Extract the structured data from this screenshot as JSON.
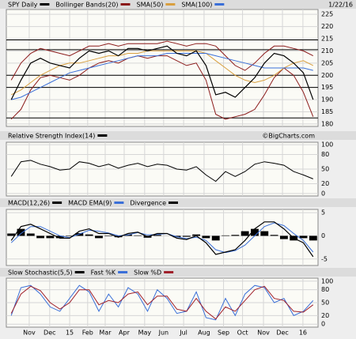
{
  "chart_data": [
    {
      "type": "line",
      "title": "SPY Daily",
      "date": "1/22/16",
      "color": "#000000",
      "values": [
        190,
        198,
        205,
        207,
        205,
        204,
        203,
        207,
        210,
        209,
        210,
        208,
        211,
        211,
        210,
        211,
        212,
        209,
        208,
        210,
        204,
        192,
        193,
        191,
        195,
        199,
        205,
        209,
        208,
        205,
        201,
        190
      ],
      "bands": {
        "name": "Bollinger Bands(20)",
        "color": "#8b1a1a",
        "upper": [
          198,
          205,
          209,
          211,
          210,
          209,
          208,
          210,
          212,
          212,
          213,
          212,
          213,
          213,
          213,
          213,
          214,
          213,
          212,
          213,
          213,
          212,
          208,
          204,
          202,
          205,
          209,
          212,
          212,
          211,
          210,
          208
        ],
        "lower": [
          182,
          186,
          194,
          199,
          200,
          199,
          198,
          200,
          203,
          205,
          206,
          205,
          207,
          208,
          207,
          208,
          208,
          206,
          204,
          205,
          198,
          184,
          182,
          183,
          184,
          186,
          192,
          199,
          203,
          200,
          193,
          183
        ]
      },
      "series": [
        {
          "name": "SMA(50)",
          "color": "#d9a040",
          "values": [
            192,
            194,
            197,
            200,
            202,
            204,
            205,
            205,
            206,
            207,
            208,
            208,
            209,
            209,
            210,
            210,
            210,
            210,
            210,
            210,
            209,
            206,
            203,
            200,
            198,
            197,
            198,
            200,
            203,
            205,
            206,
            204
          ]
        },
        {
          "name": "SMA(100)",
          "color": "#3a6fd8",
          "values": [
            190,
            191,
            193,
            195,
            197,
            199,
            201,
            202,
            203,
            204,
            205,
            206,
            207,
            208,
            208,
            208,
            209,
            209,
            209,
            209,
            209,
            208,
            207,
            206,
            205,
            204,
            203,
            203,
            203,
            203,
            203,
            202
          ]
        }
      ],
      "hlines": [
        214.5,
        210.5,
        200,
        195,
        182.5
      ],
      "ylim": [
        179,
        227
      ],
      "yticks": [
        180,
        185,
        190,
        195,
        200,
        205,
        210,
        215,
        220,
        225
      ]
    },
    {
      "type": "line",
      "title": "Relative Strength Index(14)",
      "watermark": "©BigCharts.com",
      "series": [
        {
          "name": "Relative Strength Index(14)",
          "color": "#000000",
          "values": [
            35,
            65,
            68,
            60,
            55,
            48,
            50,
            65,
            62,
            55,
            60,
            52,
            58,
            62,
            55,
            60,
            58,
            50,
            48,
            55,
            38,
            25,
            45,
            35,
            45,
            60,
            65,
            62,
            58,
            45,
            38,
            30
          ]
        }
      ],
      "ylim": [
        -5,
        105
      ],
      "yticks": [
        0,
        20,
        50,
        80,
        100
      ]
    },
    {
      "type": "line",
      "title": "MACD(12,26)",
      "color": "#000000",
      "series": [
        {
          "name": "MACD EMA(9)",
          "color": "#3a6fd8",
          "values": [
            -1.5,
            0.5,
            2,
            2,
            1,
            0,
            -0.4,
            0.4,
            1.2,
            1,
            0.6,
            0,
            0.2,
            0.7,
            0.2,
            0.3,
            0.5,
            -0.2,
            -0.6,
            -0.3,
            -1,
            -3,
            -3.6,
            -3.2,
            -2,
            0,
            2,
            2.8,
            2.2,
            0.5,
            -1,
            -3.5
          ]
        },
        {
          "name": "Divergence",
          "color": "#000000",
          "style": "bar",
          "values": [
            0.5,
            1.5,
            0.5,
            -0.5,
            -0.5,
            -0.5,
            -0.1,
            0.6,
            0.3,
            -0.5,
            -0.1,
            -0.3,
            0.3,
            0.1,
            -0.4,
            0.2,
            0,
            -0.3,
            -0.2,
            0.3,
            -0.5,
            -1,
            0.1,
            0.2,
            1,
            1.5,
            1,
            0.2,
            -0.7,
            -1,
            -0.5,
            -1
          ]
        }
      ],
      "values": [
        -1,
        2,
        2.5,
        1.5,
        0.5,
        -0.5,
        -0.5,
        1,
        1.5,
        0.5,
        0.5,
        -0.3,
        0.5,
        0.8,
        -0.2,
        0.5,
        0.5,
        -0.5,
        -0.8,
        0,
        -1.5,
        -4,
        -3.5,
        -3,
        -1,
        1.5,
        3,
        3,
        1.5,
        -0.5,
        -1.5,
        -4.5
      ],
      "ylim": [
        -6.4,
        5.7
      ],
      "yticks": [
        -5,
        0,
        5
      ]
    },
    {
      "type": "line",
      "title": "Slow Stochastic(5,5)",
      "series": [
        {
          "name": "Fast %K",
          "color": "#3a6fd8",
          "values": [
            20,
            85,
            90,
            70,
            40,
            30,
            60,
            90,
            75,
            30,
            70,
            40,
            85,
            70,
            30,
            80,
            60,
            25,
            30,
            75,
            15,
            10,
            60,
            20,
            70,
            90,
            85,
            50,
            60,
            20,
            30,
            55
          ]
        },
        {
          "name": "Slow %D",
          "color": "#a0202a",
          "values": [
            25,
            70,
            88,
            78,
            50,
            35,
            50,
            80,
            80,
            45,
            55,
            50,
            70,
            75,
            45,
            65,
            65,
            35,
            30,
            60,
            30,
            12,
            40,
            30,
            55,
            80,
            88,
            60,
            55,
            30,
            28,
            45
          ]
        }
      ],
      "ylim": [
        -7,
        107
      ],
      "yticks": [
        0,
        20,
        50,
        80,
        100
      ],
      "xlim": [
        0,
        32
      ],
      "xticks": [
        {
          "value": 2.35,
          "label": "Nov"
        },
        {
          "value": 4.45,
          "label": "Dec"
        },
        {
          "value": 6.5,
          "label": "15"
        },
        {
          "value": 8.35,
          "label": "Feb"
        },
        {
          "value": 10.15,
          "label": "Mar"
        },
        {
          "value": 12.1,
          "label": "Apr"
        },
        {
          "value": 14.2,
          "label": "May"
        },
        {
          "value": 16.15,
          "label": "Jun"
        },
        {
          "value": 18.2,
          "label": "Jul"
        },
        {
          "value": 20.3,
          "label": "Aug"
        },
        {
          "value": 22.3,
          "label": "Sep"
        },
        {
          "value": 24.25,
          "label": "Oct"
        },
        {
          "value": 26.4,
          "label": "Nov"
        },
        {
          "value": 28.35,
          "label": "Dec"
        },
        {
          "value": 30.45,
          "label": "16"
        }
      ]
    }
  ]
}
